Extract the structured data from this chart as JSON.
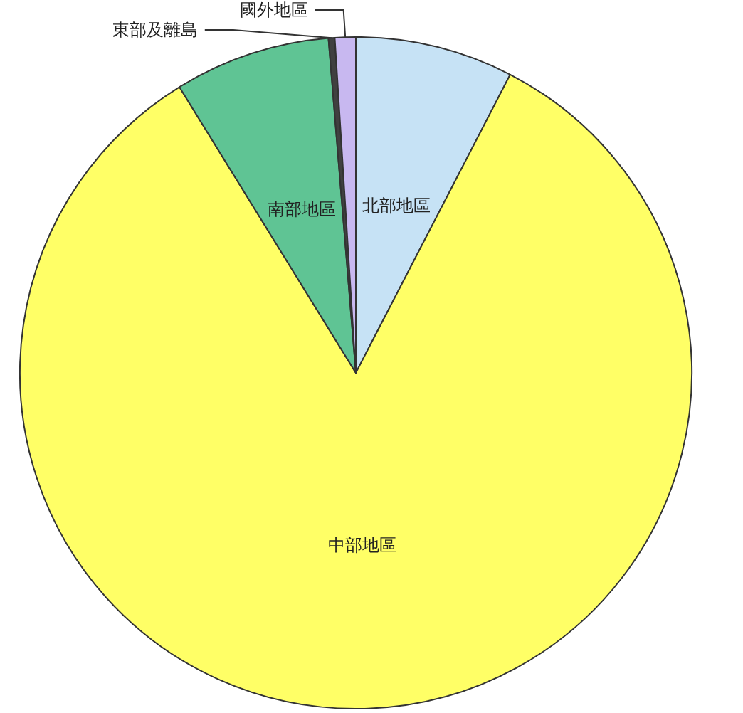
{
  "chart_data": {
    "type": "pie",
    "categories": [
      "北部地區",
      "中部地區",
      "南部地區",
      "東部及離島",
      "國外地區"
    ],
    "values": [
      7.6,
      83.6,
      7.5,
      0.3,
      1.0
    ],
    "colors": [
      "#c6e2f5",
      "#ffff66",
      "#5fc494",
      "#404040",
      "#c8b8f0"
    ]
  }
}
